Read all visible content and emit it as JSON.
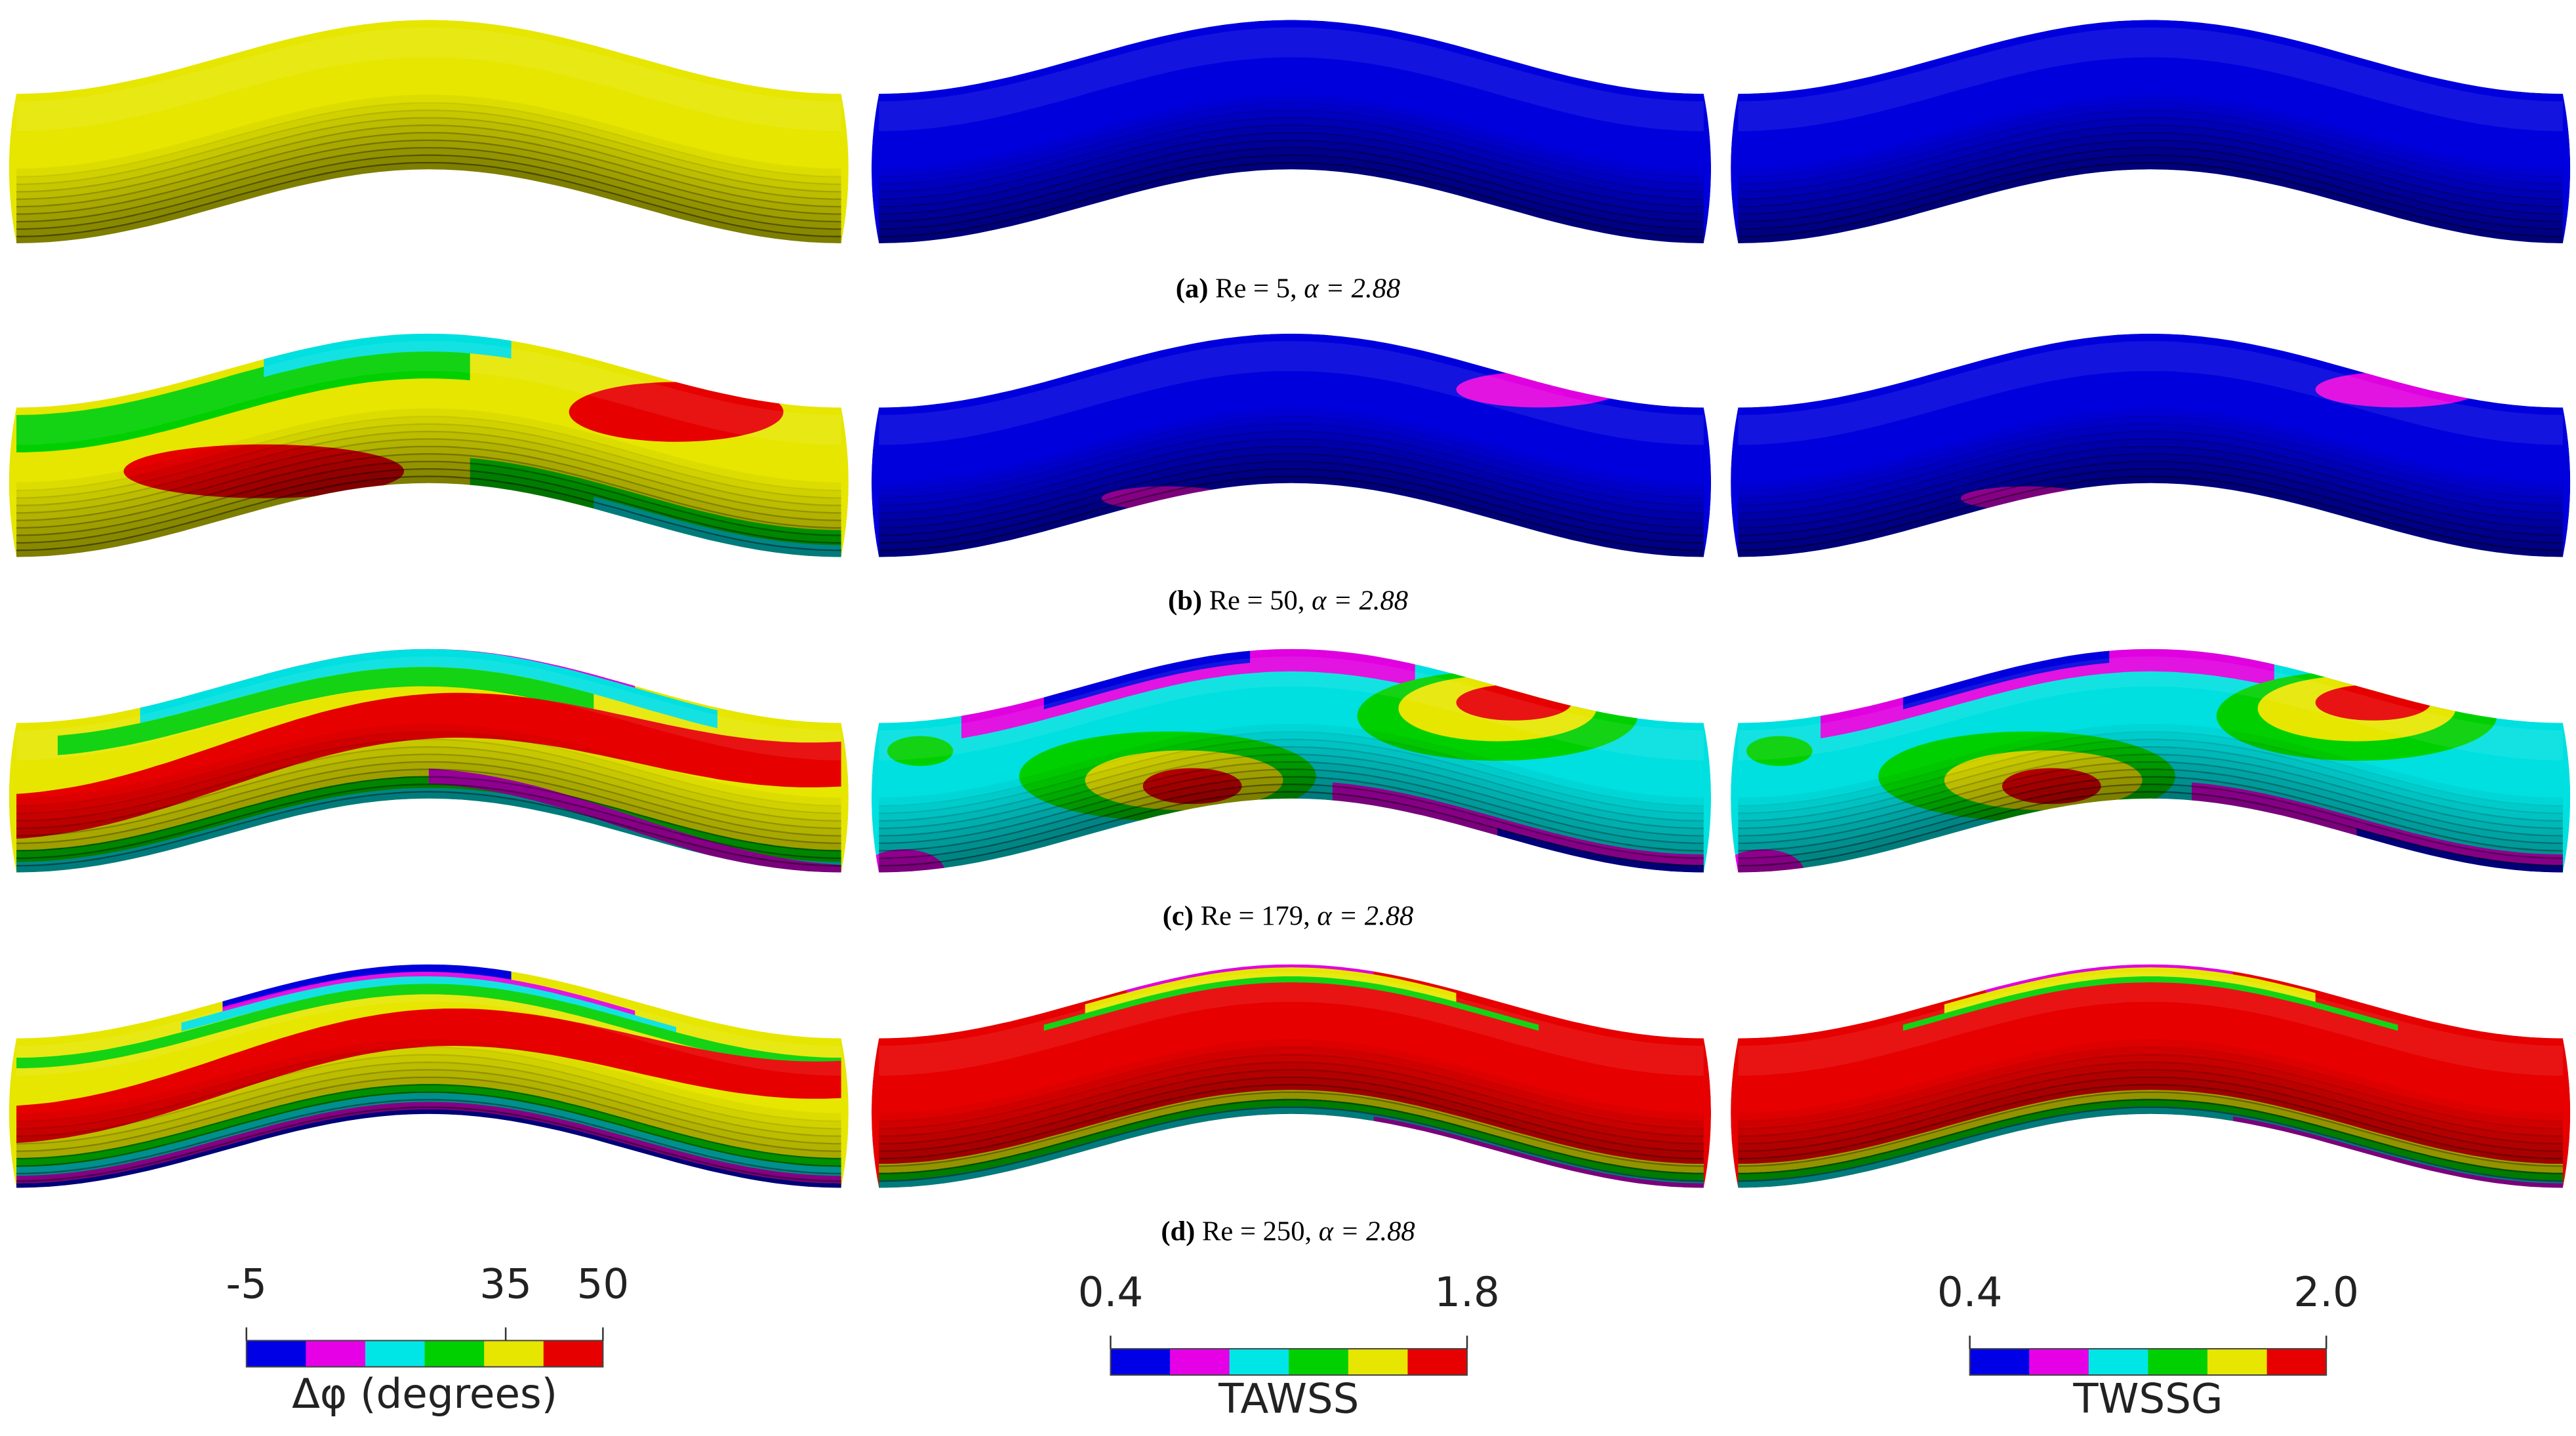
{
  "panels": [
    {
      "label": "(a)",
      "reynolds": "Re = 5,",
      "womersley": "α = 2.88"
    },
    {
      "label": "(b)",
      "reynolds": "Re = 50,",
      "womersley": "α = 2.88"
    },
    {
      "label": "(c)",
      "reynolds": "Re = 179,",
      "womersley": "α = 2.88"
    },
    {
      "label": "(d)",
      "reynolds": "Re = 250,",
      "womersley": "α = 2.88"
    }
  ],
  "colorbars": [
    {
      "title": "Δφ (degrees)",
      "lim": [
        -5,
        50
      ],
      "ticks": [
        -5,
        35,
        50
      ],
      "colors": [
        "#0000e6",
        "#e600e6",
        "#00e6e6",
        "#00d000",
        "#e6e600",
        "#e60000"
      ]
    },
    {
      "title": "TAWSS",
      "lim": [
        0.4,
        1.8
      ],
      "ticks": [
        0.4,
        1.8
      ],
      "colors": [
        "#0000e6",
        "#e600e6",
        "#00e6e6",
        "#00d000",
        "#e6e600",
        "#e60000"
      ]
    },
    {
      "title": "TWSSG",
      "lim": [
        0.4,
        2.0
      ],
      "ticks": [
        0.4,
        {
          "value": 2.0,
          "label": "2.0"
        }
      ],
      "colors": [
        "#0000e6",
        "#e600e6",
        "#00e6e6",
        "#00d000",
        "#e6e600",
        "#e60000"
      ]
    }
  ]
}
